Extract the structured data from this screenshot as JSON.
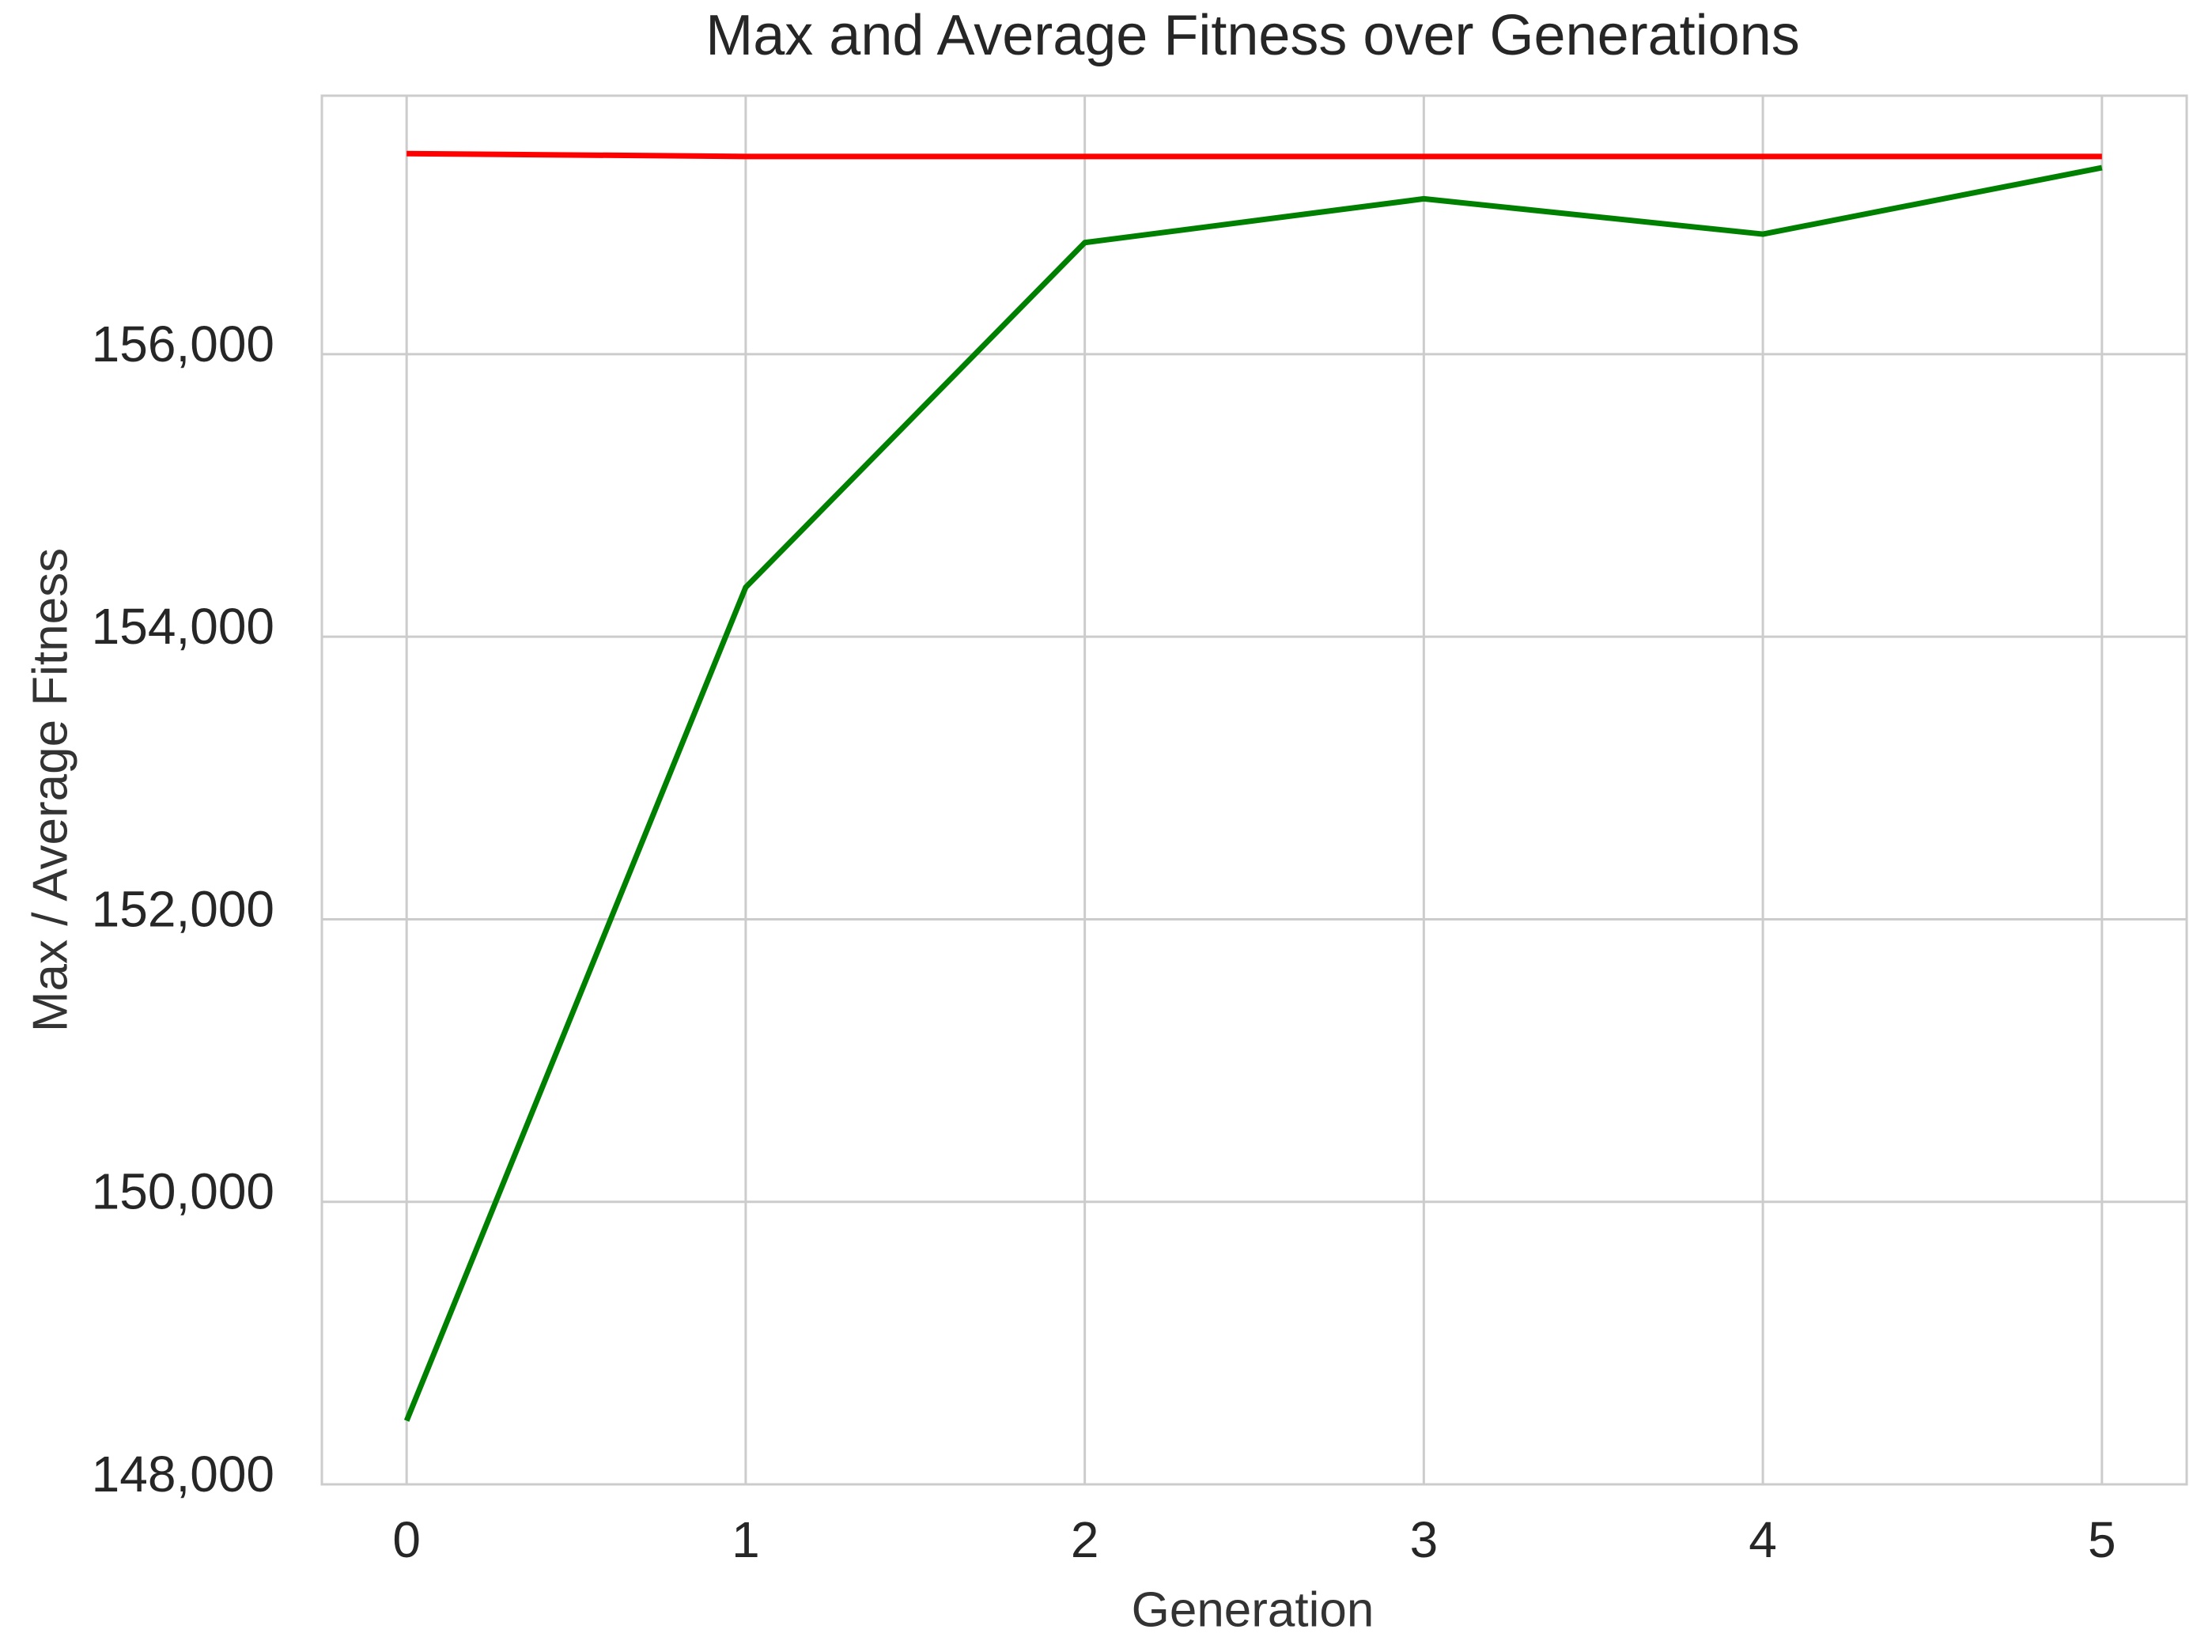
{
  "chart_data": {
    "type": "line",
    "title": "Max and Average Fitness over Generations",
    "x_label": "Generation",
    "y_label": "Max / Average Fitness",
    "x": [
      0,
      1,
      2,
      3,
      4,
      5
    ],
    "series": [
      {
        "color": "#ff0000",
        "values": [
          157420,
          157400,
          157400,
          157400,
          157400,
          157400
        ]
      },
      {
        "color": "#008000",
        "values": [
          148450,
          154350,
          156790,
          157100,
          156850,
          157320
        ]
      }
    ],
    "xlim": [
      -0.25,
      5.25
    ],
    "ylim": [
      148000,
      157830
    ],
    "xticks": [
      0,
      1,
      2,
      3,
      4,
      5
    ],
    "yticks": [
      {
        "value": 148000,
        "label": "148,000"
      },
      {
        "value": 150000,
        "label": "150,000"
      },
      {
        "value": 152000,
        "label": "152,000"
      },
      {
        "value": 154000,
        "label": "154,000"
      },
      {
        "value": 156000,
        "label": "156,000"
      }
    ],
    "grid": true
  }
}
